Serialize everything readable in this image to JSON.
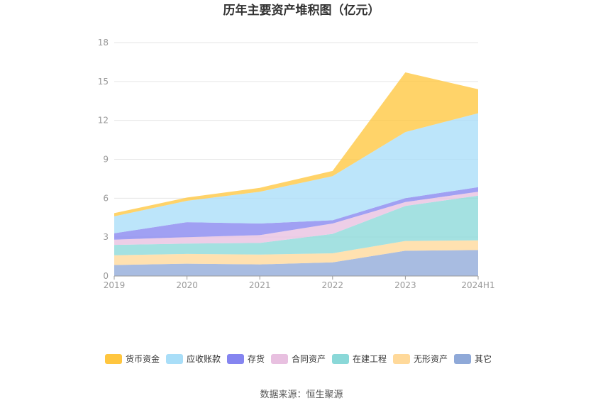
{
  "chart_data": {
    "type": "area",
    "stacked": true,
    "title": "历年主要资产堆积图（亿元）",
    "categories": [
      "2019",
      "2020",
      "2021",
      "2022",
      "2023",
      "2024H1"
    ],
    "ylim": [
      0,
      18
    ],
    "yticks": [
      "0",
      "3",
      "6",
      "9",
      "12",
      "15",
      "18"
    ],
    "grid": true,
    "legend_position": "bottom",
    "series": [
      {
        "name": "其它",
        "color": "#8fa9d8",
        "values": [
          0.85,
          0.95,
          0.9,
          1.05,
          1.95,
          2.0
        ]
      },
      {
        "name": "无形资产",
        "color": "#ffd99a",
        "values": [
          0.75,
          0.75,
          0.75,
          0.7,
          0.75,
          0.75
        ]
      },
      {
        "name": "在建工程",
        "color": "#8ad8d8",
        "values": [
          0.8,
          0.8,
          0.9,
          1.5,
          2.7,
          3.45
        ]
      },
      {
        "name": "合同资产",
        "color": "#e8c0e0",
        "values": [
          0.4,
          0.5,
          0.6,
          0.8,
          0.3,
          0.3
        ]
      },
      {
        "name": "存货",
        "color": "#8585f0",
        "values": [
          0.5,
          1.15,
          0.9,
          0.25,
          0.3,
          0.35
        ]
      },
      {
        "name": "应收账款",
        "color": "#a9def8",
        "values": [
          1.3,
          1.65,
          2.45,
          3.4,
          5.1,
          5.7
        ]
      },
      {
        "name": "货币资金",
        "color": "#ffc63f",
        "values": [
          0.25,
          0.25,
          0.3,
          0.4,
          4.6,
          1.85
        ]
      }
    ],
    "source": "数据来源：恒生聚源"
  }
}
